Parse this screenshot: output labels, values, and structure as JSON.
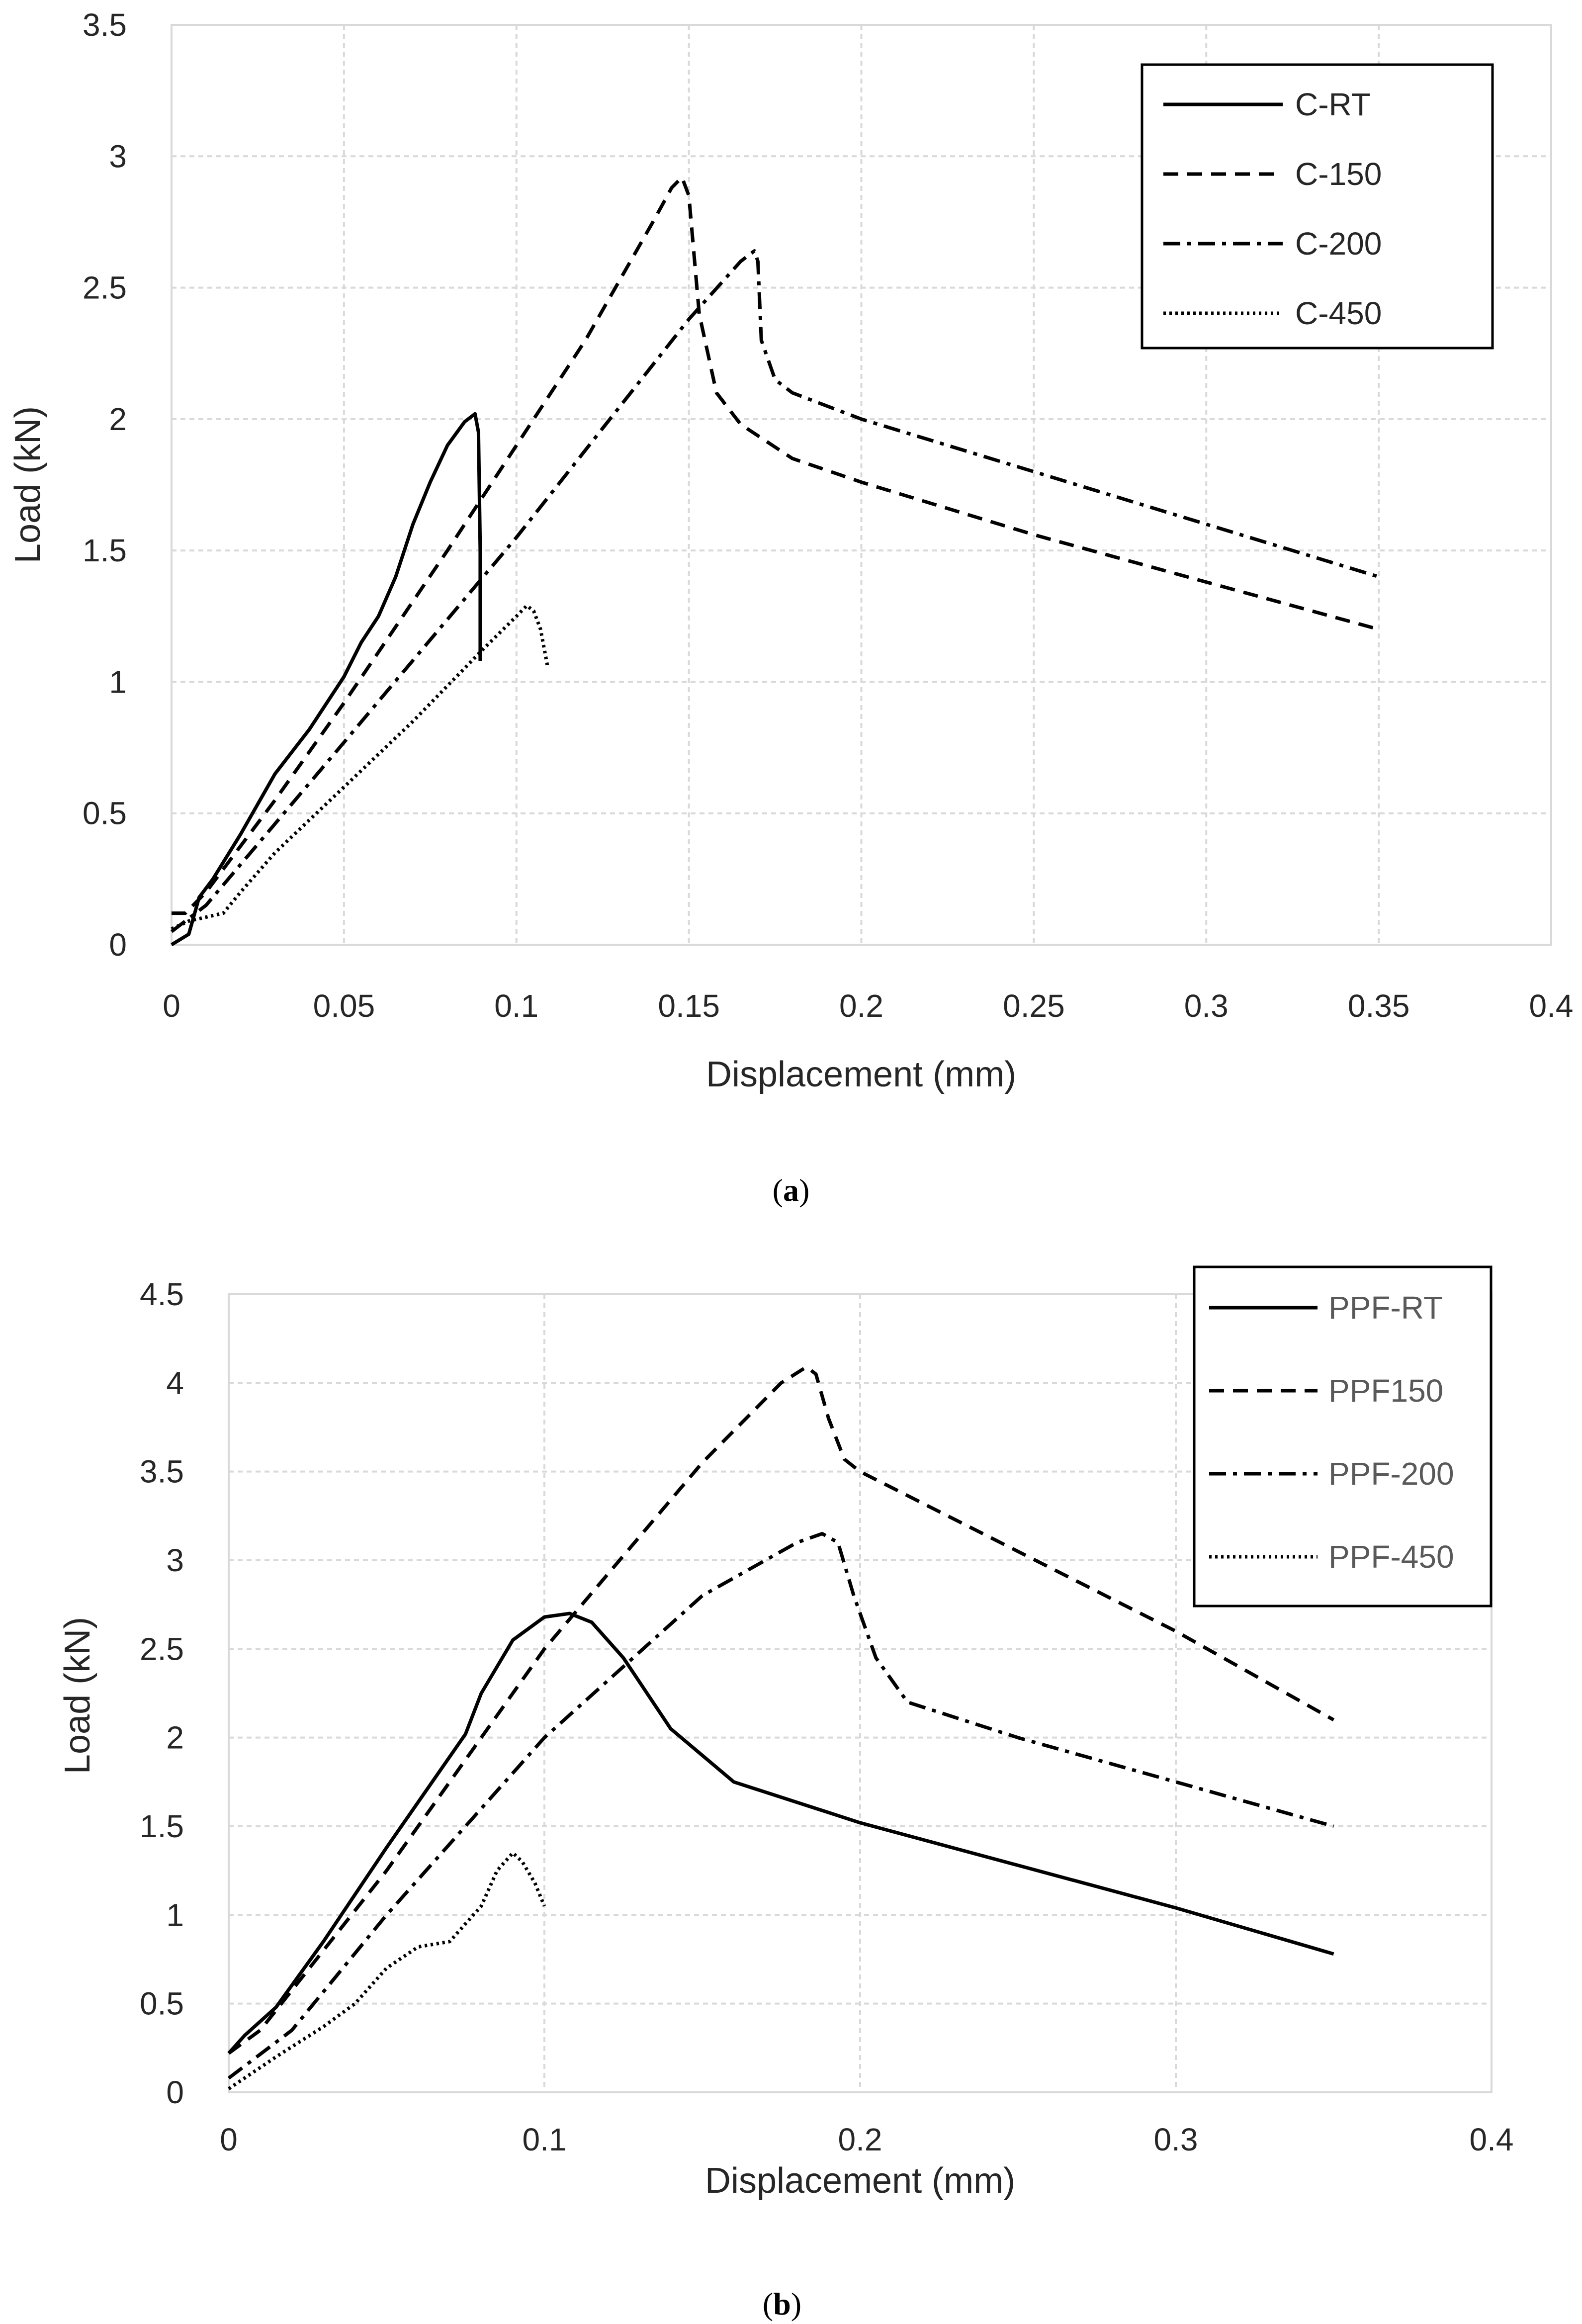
{
  "chart_data": [
    {
      "panel": "a",
      "caption_letter": "a",
      "type": "line",
      "xlabel": "Displacement (mm)",
      "ylabel": "Load (kN)",
      "xlim": [
        0,
        0.4
      ],
      "ylim": [
        0,
        3.5
      ],
      "xticks": [
        0,
        0.05,
        0.1,
        0.15,
        0.2,
        0.25,
        0.3,
        0.35,
        0.4
      ],
      "xtick_labels": [
        "0",
        "0.05",
        "0.1",
        "0.15",
        "0.2",
        "0.25",
        "0.3",
        "0.35",
        "0.4"
      ],
      "yticks": [
        0,
        0.5,
        1,
        1.5,
        2,
        2.5,
        3,
        3.5
      ],
      "ytick_labels": [
        "0",
        "0.5",
        "1",
        "1.5",
        "2",
        "2.5",
        "3",
        "3.5"
      ],
      "grid": true,
      "legend_position": "top-right",
      "series": [
        {
          "name": "C-RT",
          "style": "solid",
          "x": [
            0,
            0.005,
            0.008,
            0.012,
            0.02,
            0.03,
            0.04,
            0.05,
            0.055,
            0.06,
            0.065,
            0.07,
            0.075,
            0.08,
            0.085,
            0.088,
            0.089,
            0.0895,
            0.0895
          ],
          "y": [
            0,
            0.04,
            0.18,
            0.25,
            0.42,
            0.65,
            0.82,
            1.02,
            1.15,
            1.25,
            1.4,
            1.6,
            1.76,
            1.9,
            1.99,
            2.02,
            1.95,
            1.5,
            1.08
          ]
        },
        {
          "name": "C-150",
          "style": "dashed",
          "x": [
            0,
            0.004,
            0.01,
            0.03,
            0.05,
            0.08,
            0.1,
            0.12,
            0.14,
            0.145,
            0.148,
            0.15,
            0.153,
            0.158,
            0.165,
            0.18,
            0.2,
            0.25,
            0.3,
            0.35
          ],
          "y": [
            0.12,
            0.12,
            0.2,
            0.55,
            0.92,
            1.5,
            1.9,
            2.3,
            2.76,
            2.88,
            2.92,
            2.85,
            2.4,
            2.1,
            1.98,
            1.85,
            1.76,
            1.56,
            1.38,
            1.2
          ],
          "label": ""
        },
        {
          "name": "C-200",
          "style": "dashdot",
          "x": [
            0,
            0.01,
            0.05,
            0.1,
            0.15,
            0.165,
            0.169,
            0.17,
            0.171,
            0.175,
            0.18,
            0.2,
            0.25,
            0.3,
            0.35
          ],
          "y": [
            0.05,
            0.15,
            0.77,
            1.55,
            2.38,
            2.6,
            2.64,
            2.6,
            2.3,
            2.15,
            2.1,
            2.0,
            1.8,
            1.6,
            1.4
          ]
        },
        {
          "name": "C-450",
          "style": "dotted",
          "x": [
            0,
            0.005,
            0.015,
            0.02,
            0.03,
            0.05,
            0.07,
            0.09,
            0.1,
            0.103,
            0.105,
            0.107,
            0.109
          ],
          "y": [
            0.06,
            0.09,
            0.12,
            0.2,
            0.35,
            0.6,
            0.85,
            1.12,
            1.25,
            1.29,
            1.27,
            1.2,
            1.06
          ]
        }
      ]
    },
    {
      "panel": "b",
      "caption_letter": "b",
      "type": "line",
      "xlabel": "Displacement (mm)",
      "ylabel": "Load (kN)",
      "xlim": [
        0,
        0.4
      ],
      "ylim": [
        0,
        4.5
      ],
      "xticks": [
        0,
        0.1,
        0.2,
        0.3,
        0.4
      ],
      "xtick_labels": [
        "0",
        "0.1",
        "0.2",
        "0.3",
        "0.4"
      ],
      "yticks": [
        0,
        0.5,
        1,
        1.5,
        2,
        2.5,
        3,
        3.5,
        4,
        4.5
      ],
      "ytick_labels": [
        "0",
        "0.5",
        "1",
        "1.5",
        "2",
        "2.5",
        "3",
        "3.5",
        "4",
        "4.5"
      ],
      "grid": true,
      "legend_position": "top-right",
      "series": [
        {
          "name": "PPF-RT",
          "style": "solid",
          "x": [
            0,
            0.005,
            0.015,
            0.03,
            0.05,
            0.075,
            0.08,
            0.09,
            0.1,
            0.108,
            0.115,
            0.125,
            0.14,
            0.16,
            0.2,
            0.25,
            0.3,
            0.35
          ],
          "y": [
            0.22,
            0.32,
            0.48,
            0.85,
            1.38,
            2.02,
            2.25,
            2.55,
            2.68,
            2.7,
            2.65,
            2.45,
            2.05,
            1.75,
            1.52,
            1.28,
            1.04,
            0.78
          ]
        },
        {
          "name": "PPF150",
          "style": "dashed",
          "x": [
            0,
            0.01,
            0.05,
            0.1,
            0.15,
            0.175,
            0.183,
            0.186,
            0.19,
            0.195,
            0.2,
            0.25,
            0.3,
            0.35
          ],
          "y": [
            0.22,
            0.35,
            1.25,
            2.5,
            3.55,
            4.0,
            4.09,
            4.05,
            3.8,
            3.57,
            3.5,
            3.05,
            2.6,
            2.1
          ]
        },
        {
          "name": "PPF-200",
          "style": "dashdot",
          "x": [
            0,
            0.02,
            0.05,
            0.1,
            0.15,
            0.18,
            0.188,
            0.193,
            0.198,
            0.205,
            0.215,
            0.25,
            0.3,
            0.35
          ],
          "y": [
            0.08,
            0.35,
            1.0,
            2.0,
            2.8,
            3.1,
            3.15,
            3.1,
            2.8,
            2.45,
            2.2,
            2.0,
            1.75,
            1.5
          ]
        },
        {
          "name": "PPF-450",
          "style": "dotted",
          "x": [
            0,
            0.015,
            0.03,
            0.04,
            0.05,
            0.06,
            0.07,
            0.08,
            0.085,
            0.09,
            0.093,
            0.097,
            0.1
          ],
          "y": [
            0.02,
            0.2,
            0.37,
            0.5,
            0.7,
            0.82,
            0.85,
            1.05,
            1.25,
            1.35,
            1.3,
            1.18,
            1.05
          ]
        }
      ]
    }
  ]
}
